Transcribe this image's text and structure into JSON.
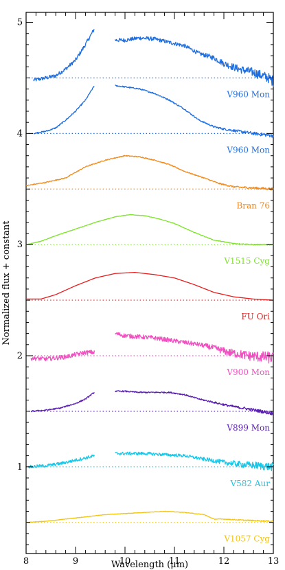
{
  "chart_data": {
    "type": "line",
    "xlabel": "Wavelength (μm)",
    "ylabel": "Normalized flux + constant",
    "xlim": [
      8,
      13
    ],
    "ylim": [
      0.22,
      5.09
    ],
    "xticks": [
      8,
      9,
      10,
      11,
      12,
      13
    ],
    "yticks": [
      1,
      2,
      3,
      4,
      5
    ],
    "grid": false,
    "legend": "none",
    "series": [
      {
        "name": "V960 Mon",
        "color": "#1f6fe0",
        "baseline": 4.5,
        "noise": 0.035,
        "segments": [
          [
            [
              8.15,
              4.48
            ],
            [
              8.4,
              4.5
            ],
            [
              8.6,
              4.52
            ],
            [
              8.8,
              4.58
            ],
            [
              9.0,
              4.66
            ],
            [
              9.2,
              4.8
            ],
            [
              9.38,
              4.94
            ]
          ],
          [
            [
              9.8,
              4.84
            ],
            [
              10.0,
              4.84
            ],
            [
              10.3,
              4.86
            ],
            [
              10.6,
              4.85
            ],
            [
              10.9,
              4.82
            ],
            [
              11.2,
              4.79
            ],
            [
              11.5,
              4.72
            ],
            [
              11.8,
              4.68
            ],
            [
              12.0,
              4.63
            ],
            [
              12.3,
              4.58
            ],
            [
              12.6,
              4.55
            ],
            [
              12.9,
              4.5
            ],
            [
              13.0,
              4.47
            ]
          ]
        ]
      },
      {
        "name": "V960 Mon",
        "color": "#1f6fe0",
        "baseline": 4.0,
        "noise": 0.012,
        "segments": [
          [
            [
              8.15,
              4.0
            ],
            [
              8.4,
              4.02
            ],
            [
              8.6,
              4.05
            ],
            [
              8.8,
              4.12
            ],
            [
              9.0,
              4.2
            ],
            [
              9.2,
              4.3
            ],
            [
              9.38,
              4.43
            ]
          ],
          [
            [
              9.8,
              4.43
            ],
            [
              10.0,
              4.42
            ],
            [
              10.3,
              4.4
            ],
            [
              10.6,
              4.36
            ],
            [
              10.9,
              4.3
            ],
            [
              11.2,
              4.22
            ],
            [
              11.5,
              4.12
            ],
            [
              11.8,
              4.06
            ],
            [
              12.0,
              4.04
            ],
            [
              12.3,
              4.02
            ],
            [
              12.6,
              4.0
            ],
            [
              13.0,
              3.98
            ]
          ]
        ]
      },
      {
        "name": "Bran 76",
        "color": "#f08a1c",
        "baseline": 3.5,
        "noise": 0.008,
        "segments": [
          [
            [
              8.0,
              3.53
            ],
            [
              8.4,
              3.56
            ],
            [
              8.8,
              3.6
            ],
            [
              9.2,
              3.7
            ],
            [
              9.6,
              3.76
            ],
            [
              10.0,
              3.8
            ],
            [
              10.3,
              3.79
            ],
            [
              10.6,
              3.76
            ],
            [
              10.9,
              3.72
            ],
            [
              11.2,
              3.66
            ],
            [
              11.6,
              3.6
            ],
            [
              11.9,
              3.55
            ],
            [
              12.2,
              3.52
            ],
            [
              12.6,
              3.51
            ],
            [
              13.0,
              3.5
            ]
          ]
        ]
      },
      {
        "name": "V1515 Cyg",
        "color": "#7ee32a",
        "baseline": 3.0,
        "noise": 0.004,
        "segments": [
          [
            [
              8.0,
              3.0
            ],
            [
              8.3,
              3.03
            ],
            [
              8.6,
              3.08
            ],
            [
              9.0,
              3.14
            ],
            [
              9.4,
              3.2
            ],
            [
              9.8,
              3.25
            ],
            [
              10.1,
              3.27
            ],
            [
              10.4,
              3.26
            ],
            [
              10.7,
              3.23
            ],
            [
              11.0,
              3.19
            ],
            [
              11.4,
              3.11
            ],
            [
              11.8,
              3.04
            ],
            [
              12.2,
              3.01
            ],
            [
              12.6,
              3.0
            ],
            [
              13.0,
              3.0
            ]
          ]
        ]
      },
      {
        "name": "FU Ori",
        "color": "#e81c1c",
        "baseline": 2.5,
        "noise": 0.0,
        "segments": [
          [
            [
              8.0,
              2.51
            ],
            [
              8.3,
              2.51
            ],
            [
              8.6,
              2.55
            ],
            [
              9.0,
              2.63
            ],
            [
              9.4,
              2.7
            ],
            [
              9.8,
              2.74
            ],
            [
              10.2,
              2.75
            ],
            [
              10.6,
              2.73
            ],
            [
              11.0,
              2.7
            ],
            [
              11.4,
              2.64
            ],
            [
              11.8,
              2.57
            ],
            [
              12.2,
              2.53
            ],
            [
              12.6,
              2.51
            ],
            [
              13.0,
              2.5
            ]
          ]
        ]
      },
      {
        "name": "V900 Mon",
        "color": "#f050c0",
        "baseline": 2.0,
        "noise": 0.04,
        "segments": [
          [
            [
              8.1,
              1.98
            ],
            [
              8.4,
              1.97
            ],
            [
              8.6,
              1.98
            ],
            [
              8.8,
              1.99
            ],
            [
              9.0,
              2.01
            ],
            [
              9.2,
              2.03
            ],
            [
              9.38,
              2.03
            ]
          ],
          [
            [
              9.8,
              2.2
            ],
            [
              10.0,
              2.18
            ],
            [
              10.3,
              2.17
            ],
            [
              10.6,
              2.16
            ],
            [
              10.9,
              2.14
            ],
            [
              11.2,
              2.12
            ],
            [
              11.5,
              2.1
            ],
            [
              11.8,
              2.07
            ],
            [
              12.1,
              2.03
            ],
            [
              12.5,
              2.0
            ],
            [
              13.0,
              1.98
            ]
          ]
        ]
      },
      {
        "name": "V899 Mon",
        "color": "#5a1fb0",
        "baseline": 1.5,
        "noise": 0.012,
        "segments": [
          [
            [
              8.1,
              1.5
            ],
            [
              8.4,
              1.51
            ],
            [
              8.7,
              1.53
            ],
            [
              9.0,
              1.57
            ],
            [
              9.2,
              1.61
            ],
            [
              9.38,
              1.67
            ]
          ],
          [
            [
              9.8,
              1.68
            ],
            [
              10.0,
              1.68
            ],
            [
              10.3,
              1.67
            ],
            [
              10.6,
              1.67
            ],
            [
              10.9,
              1.67
            ],
            [
              11.2,
              1.65
            ],
            [
              11.5,
              1.61
            ],
            [
              11.8,
              1.58
            ],
            [
              12.1,
              1.55
            ],
            [
              12.5,
              1.52
            ],
            [
              13.0,
              1.48
            ]
          ]
        ]
      },
      {
        "name": "V582 Aur",
        "color": "#18c8e8",
        "baseline": 1.0,
        "noise": 0.028,
        "segments": [
          [
            [
              8.05,
              1.0
            ],
            [
              8.4,
              1.01
            ],
            [
              8.7,
              1.03
            ],
            [
              9.0,
              1.06
            ],
            [
              9.2,
              1.08
            ],
            [
              9.38,
              1.1
            ]
          ],
          [
            [
              9.8,
              1.12
            ],
            [
              10.0,
              1.12
            ],
            [
              10.4,
              1.12
            ],
            [
              10.8,
              1.11
            ],
            [
              11.2,
              1.1
            ],
            [
              11.6,
              1.07
            ],
            [
              12.0,
              1.04
            ],
            [
              12.4,
              1.02
            ],
            [
              13.0,
              1.0
            ]
          ]
        ]
      },
      {
        "name": "V1057 Cyg",
        "color": "#f2c40c",
        "baseline": 0.5,
        "noise": 0.004,
        "segments": [
          [
            [
              8.0,
              0.5
            ],
            [
              8.4,
              0.51
            ],
            [
              8.8,
              0.53
            ],
            [
              9.2,
              0.55
            ],
            [
              9.6,
              0.57
            ],
            [
              10.0,
              0.58
            ],
            [
              10.4,
              0.59
            ],
            [
              10.8,
              0.6
            ],
            [
              11.2,
              0.59
            ],
            [
              11.6,
              0.57
            ],
            [
              11.8,
              0.53
            ],
            [
              12.0,
              0.53
            ],
            [
              12.4,
              0.52
            ],
            [
              13.0,
              0.51
            ]
          ]
        ]
      }
    ]
  }
}
